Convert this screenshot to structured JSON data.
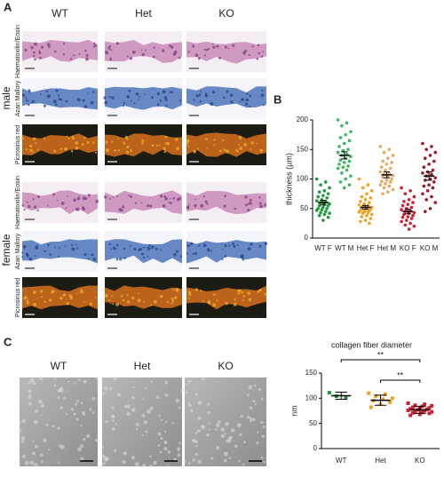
{
  "panel_labels": [
    "A",
    "B",
    "C"
  ],
  "panel_a": {
    "columns": [
      "WT",
      "Het",
      "KO"
    ],
    "groups": [
      {
        "label": "male",
        "rows": [
          "Haematoxilin/Eosin",
          "Azan Mallory",
          "Picrosirius red"
        ]
      },
      {
        "label": "female",
        "rows": [
          "Haematoxilin/Eosin",
          "Azan Mallory",
          "Picrosirius red"
        ]
      }
    ]
  },
  "panel_c": {
    "columns": [
      "WT",
      "Het",
      "KO"
    ]
  },
  "chart_data": [
    {
      "type": "strip",
      "ylabel": "thickness (µm)",
      "categories": [
        "WT F",
        "WT M",
        "Het F",
        "Het M",
        "KO F",
        "KO M"
      ],
      "colors": [
        "#1e9a3c",
        "#3cb85a",
        "#f0a020",
        "#e6a860",
        "#d0202e",
        "#9e1a2a"
      ],
      "marker": "circle",
      "points": [
        [
          100,
          95,
          90,
          85,
          80,
          78,
          75,
          72,
          70,
          68,
          65,
          63,
          62,
          60,
          58,
          57,
          55,
          55,
          52,
          50,
          50,
          48,
          47,
          45,
          43,
          42,
          40,
          38,
          35,
          30
        ],
        [
          200,
          195,
          190,
          180,
          175,
          170,
          165,
          160,
          155,
          150,
          148,
          145,
          142,
          140,
          138,
          135,
          132,
          130,
          128,
          125,
          122,
          120,
          118,
          115,
          110,
          105,
          100,
          95,
          90,
          85
        ],
        [
          100,
          90,
          85,
          80,
          75,
          70,
          68,
          65,
          62,
          60,
          58,
          56,
          55,
          54,
          52,
          50,
          50,
          49,
          48,
          47,
          46,
          45,
          44,
          43,
          42,
          40,
          38,
          36,
          33,
          30,
          28,
          25
        ],
        [
          155,
          150,
          145,
          140,
          135,
          130,
          128,
          125,
          120,
          118,
          115,
          112,
          110,
          108,
          106,
          105,
          103,
          100,
          98,
          96,
          95,
          92,
          90,
          88,
          85,
          82,
          78,
          75
        ],
        [
          85,
          80,
          75,
          70,
          65,
          62,
          60,
          57,
          55,
          52,
          50,
          48,
          46,
          45,
          43,
          42,
          40,
          38,
          36,
          35,
          33,
          30,
          28,
          25,
          22,
          20,
          15
        ],
        [
          160,
          155,
          150,
          145,
          140,
          135,
          130,
          125,
          120,
          115,
          112,
          110,
          108,
          105,
          102,
          100,
          98,
          95,
          90,
          88,
          85,
          80,
          75,
          70,
          65,
          60,
          50,
          45
        ]
      ],
      "means": [
        60,
        140,
        52,
        107,
        45,
        105
      ],
      "errors": [
        4,
        6,
        3,
        5,
        4,
        7
      ],
      "ylim": [
        0,
        200
      ],
      "yticks": [
        0,
        50,
        100,
        150,
        200
      ]
    },
    {
      "type": "strip",
      "title": "collagen fiber diameter",
      "ylabel": "nm",
      "categories": [
        "WT",
        "Het",
        "KO"
      ],
      "colors": [
        "#1e9a3c",
        "#f0a020",
        "#d0202e"
      ],
      "marker": "square",
      "points": [
        [
          111,
          101,
          104
        ],
        [
          110,
          108,
          104,
          100,
          98,
          95,
          92,
          88,
          82
        ],
        [
          90,
          88,
          86,
          85,
          84,
          82,
          81,
          80,
          79,
          78,
          77,
          76,
          75,
          74,
          73,
          72,
          71,
          70,
          68,
          66
        ]
      ],
      "means": [
        105,
        96,
        77
      ],
      "errors": [
        7,
        10,
        7
      ],
      "ylim": [
        0,
        150
      ],
      "yticks": [
        0,
        50,
        100,
        150
      ],
      "significance": [
        {
          "from": 0,
          "to": 2,
          "label": "**"
        },
        {
          "from": 1,
          "to": 2,
          "label": "**"
        }
      ]
    }
  ]
}
